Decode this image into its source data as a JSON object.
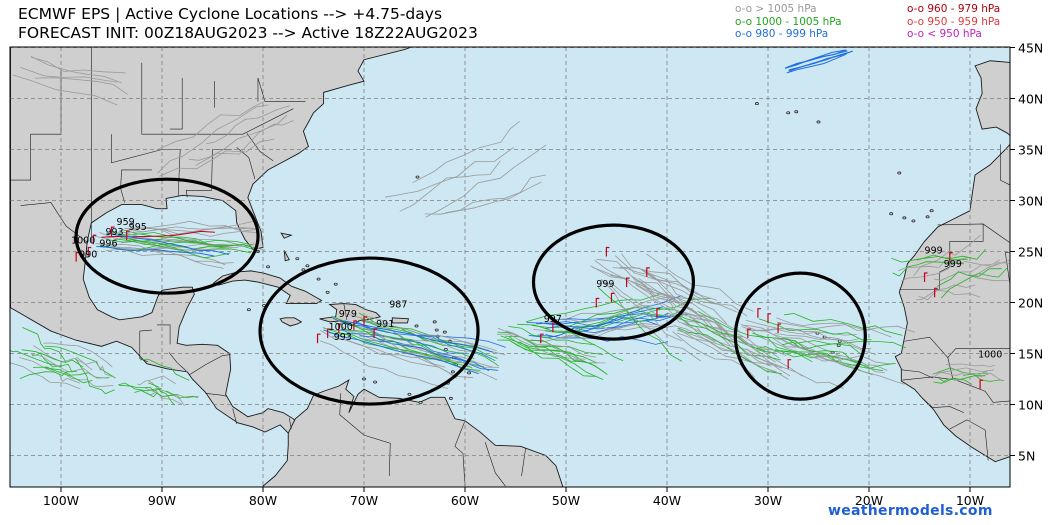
{
  "title": {
    "line1": "ECMWF EPS | Active Cyclone Locations --> +4.75-days",
    "line2": "FORECAST INIT: 00Z18AUG2023 --> Active 18Z22AUG2023"
  },
  "legend": [
    {
      "text": "o-o > 1005 hPa",
      "color": "#999999"
    },
    {
      "text": "o-o 1000 - 1005 hPa",
      "color": "#21a321"
    },
    {
      "text": "o-o 980 - 999 hPa",
      "color": "#1f6fe0"
    },
    {
      "text": "o-o 960 - 979 hPa",
      "color": "#b0000b"
    },
    {
      "text": "o-o 950 - 959 hPa",
      "color": "#e0383b"
    },
    {
      "text": "o-o < 950 hPa",
      "color": "#c020c0"
    }
  ],
  "axes": {
    "lon_labels": [
      "100W",
      "90W",
      "80W",
      "70W",
      "60W",
      "50W",
      "40W",
      "30W",
      "20W",
      "10W"
    ],
    "lat_labels": [
      "45N",
      "40N",
      "35N",
      "30N",
      "25N",
      "20N",
      "15N",
      "10N",
      "5N"
    ]
  },
  "pressure_labels": [
    {
      "text": "959",
      "lon": -94.5,
      "lat": 27.6
    },
    {
      "text": "995",
      "lon": -93.3,
      "lat": 27.1
    },
    {
      "text": "993",
      "lon": -95.6,
      "lat": 26.6
    },
    {
      "text": "1000",
      "lon": -99.0,
      "lat": 25.8
    },
    {
      "text": "996",
      "lon": -96.2,
      "lat": 25.5
    },
    {
      "text": "990",
      "lon": -98.2,
      "lat": 24.4
    },
    {
      "text": "987",
      "lon": -67.5,
      "lat": 19.5
    },
    {
      "text": "979",
      "lon": -72.5,
      "lat": 18.6
    },
    {
      "text": "1000",
      "lon": -73.5,
      "lat": 17.3
    },
    {
      "text": "991",
      "lon": -68.8,
      "lat": 17.6
    },
    {
      "text": "993",
      "lon": -73.0,
      "lat": 16.3
    },
    {
      "text": "997",
      "lon": -52.2,
      "lat": 18.1
    },
    {
      "text": "999",
      "lon": -47.0,
      "lat": 21.5
    },
    {
      "text": "999",
      "lon": -14.5,
      "lat": 24.8
    },
    {
      "text": "999",
      "lon": -12.6,
      "lat": 23.5
    },
    {
      "text": "1000",
      "lon": -9.2,
      "lat": 14.6
    }
  ],
  "circles": [
    {
      "name": "gulf-of-mexico",
      "lon": -89.5,
      "lat": 26.5,
      "rx": 91,
      "ry": 57
    },
    {
      "name": "caribbean",
      "lon": -69.5,
      "lat": 17.2,
      "rx": 109,
      "ry": 73
    },
    {
      "name": "central-atlantic",
      "lon": -45.3,
      "lat": 22.0,
      "rx": 80,
      "ry": 57
    },
    {
      "name": "eastern-atlantic",
      "lon": -26.8,
      "lat": 16.7,
      "rx": 65,
      "ry": 63
    }
  ],
  "colors": {
    "ocean": "#cde8f2",
    "land": "#cfcfcf",
    "border": "#1a1a1a",
    "grid": "#808080",
    "track_gray": "#9a9a9a",
    "track_green": "#27b327",
    "track_blue": "#1f6fe0",
    "track_red": "#c8001a",
    "circle": "#000000"
  },
  "credit": "weathermodels.com"
}
